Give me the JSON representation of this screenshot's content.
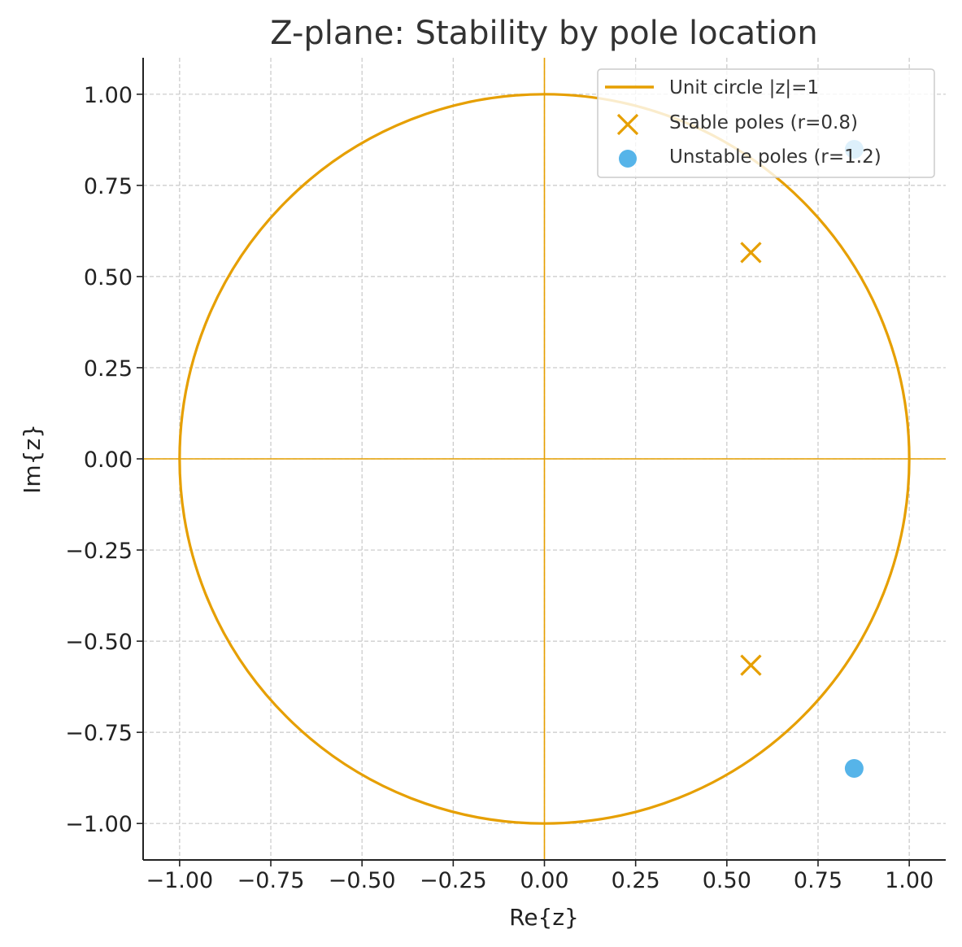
{
  "chart_data": {
    "type": "scatter",
    "title": "Z-plane: Stability by pole location",
    "xlabel": "Re{z}",
    "ylabel": "Im{z}",
    "xlim": [
      -1.1,
      1.1
    ],
    "ylim": [
      -1.1,
      1.1
    ],
    "xticks": [
      -1.0,
      -0.75,
      -0.5,
      -0.25,
      0.0,
      0.25,
      0.5,
      0.75,
      1.0
    ],
    "yticks": [
      -1.0,
      -0.75,
      -0.5,
      -0.25,
      0.0,
      0.25,
      0.5,
      0.75,
      1.0
    ],
    "xtick_labels": [
      "−1.00",
      "−0.75",
      "−0.50",
      "−0.25",
      "0.00",
      "0.25",
      "0.50",
      "0.75",
      "1.00"
    ],
    "ytick_labels": [
      "−1.00",
      "−0.75",
      "−0.50",
      "−0.25",
      "0.00",
      "0.25",
      "0.50",
      "0.75",
      "1.00"
    ],
    "grid": true,
    "legend_position": "top-right",
    "unit_circle": {
      "name": "Unit circle |z|=1",
      "radius": 1.0,
      "color": "#E69F00"
    },
    "axis_lines": {
      "x": 0.0,
      "y": 0.0,
      "color": "#E69F00"
    },
    "series": [
      {
        "name": "Stable poles (r=0.8)",
        "marker": "x",
        "color": "#E69F00",
        "points": [
          [
            0.566,
            0.566
          ],
          [
            0.566,
            -0.566
          ]
        ]
      },
      {
        "name": "Unstable poles (r=1.2)",
        "marker": "circle",
        "color": "#56B4E9",
        "points": [
          [
            0.849,
            0.849
          ],
          [
            0.849,
            -0.849
          ]
        ]
      }
    ]
  }
}
